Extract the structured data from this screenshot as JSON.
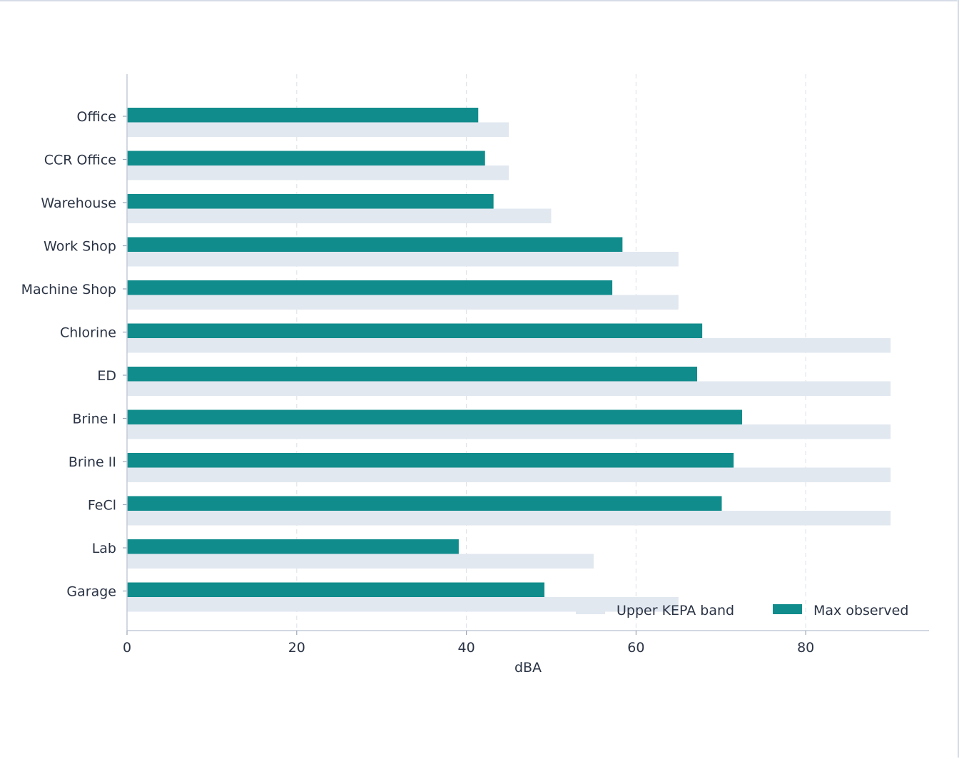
{
  "chart_data": {
    "type": "bar",
    "orientation": "horizontal",
    "categories": [
      "Office",
      "CCR Office",
      "Warehouse",
      "Work Shop",
      "Machine Shop",
      "Chlorine",
      "ED",
      "Brine I",
      "Brine II",
      "FeCl",
      "Lab",
      "Garage"
    ],
    "series": [
      {
        "name": "Upper KEPA band",
        "color": "#e2e8f0",
        "values": [
          45,
          45,
          50,
          65,
          65,
          90,
          90,
          90,
          90,
          90,
          55,
          65
        ]
      },
      {
        "name": "Max observed",
        "color": "#118c8c",
        "values": [
          41.4,
          42.2,
          43.2,
          58.4,
          57.2,
          67.8,
          67.2,
          72.5,
          71.5,
          70.1,
          39.1,
          49.2
        ]
      }
    ],
    "xlabel": "dBA",
    "xlim": [
      0,
      94.6
    ],
    "xticks": [
      0,
      20,
      40,
      60,
      80
    ],
    "grid": "vertical dashed",
    "legend": "bottom-right"
  }
}
